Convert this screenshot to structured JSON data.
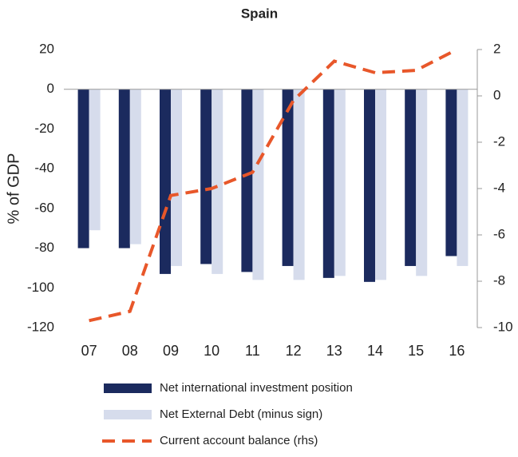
{
  "chart_data": {
    "type": "bar_line",
    "title": "Spain",
    "y_label": "% of GDP",
    "categories": [
      "07",
      "08",
      "09",
      "10",
      "11",
      "12",
      "13",
      "14",
      "15",
      "16"
    ],
    "series": [
      {
        "name": "Net international investment position",
        "type": "bar",
        "color": "#1b2a5e",
        "values": [
          -80,
          -80,
          -93,
          -88,
          -92,
          -89,
          -95,
          -97,
          -89,
          -84
        ]
      },
      {
        "name": "Net External Debt (minus sign)",
        "type": "bar",
        "color": "#d6dcec",
        "values": [
          -71,
          -78,
          -89,
          -93,
          -96,
          -96,
          -94,
          -96,
          -94,
          -89
        ]
      },
      {
        "name": "Current account balance (rhs)",
        "type": "line",
        "axis": "y2",
        "color": "#e8572a",
        "values": [
          -9.7,
          -9.3,
          -4.3,
          -4.0,
          -3.3,
          -0.2,
          1.5,
          1.0,
          1.1,
          2.0
        ]
      }
    ],
    "ylim": [
      -120,
      20
    ],
    "yticks": [
      -120,
      -100,
      -80,
      -60,
      -40,
      -20,
      0,
      20
    ],
    "y2lim": [
      -10,
      2
    ],
    "y2ticks": [
      -10,
      -8,
      -6,
      -4,
      -2,
      0,
      2
    ]
  }
}
